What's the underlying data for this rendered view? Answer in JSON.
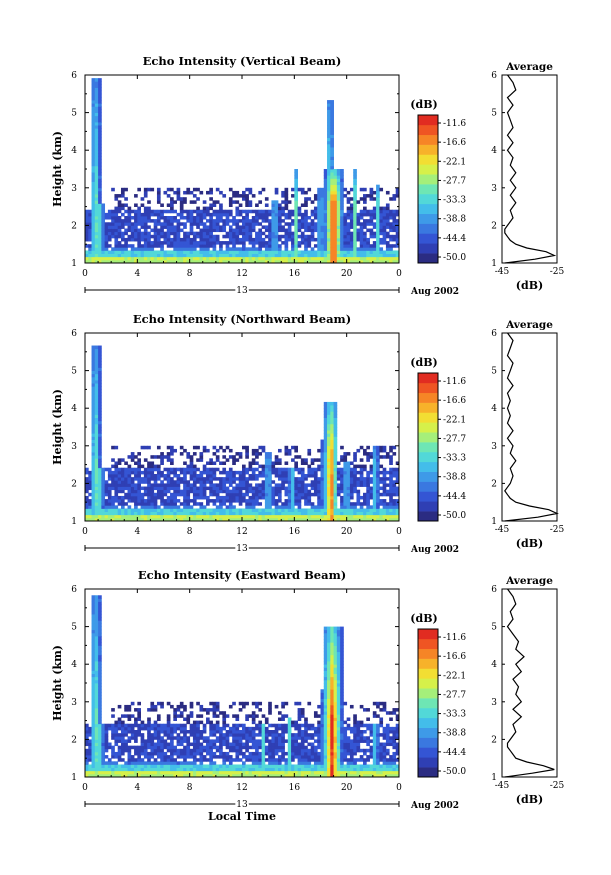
{
  "chart_data": [
    {
      "type": "heatmap",
      "title": "Echo Intensity (Vertical Beam)",
      "ylabel": "Height (km)",
      "xlabel": "",
      "xlim": [
        0,
        24
      ],
      "ylim": [
        1,
        6
      ],
      "xticks": [
        "0",
        "4",
        "8",
        "12",
        "16",
        "20",
        "0"
      ],
      "yticks": [
        "1",
        "2",
        "3",
        "4",
        "5",
        "6"
      ],
      "day_label": "13",
      "date_label": "Aug 2002",
      "colorbar_unit": "(dB)",
      "colorbar_ticks": [
        "-11.6",
        "-16.6",
        "-22.1",
        "-27.7",
        "-33.3",
        "-38.8",
        "-44.4",
        "-50.0"
      ],
      "convection": [
        {
          "t": 0.8,
          "top": 5.9,
          "peak": -30,
          "w": 0.35
        },
        {
          "t": 1.2,
          "top": 2.6,
          "peak": -28,
          "w": 0.2
        },
        {
          "t": 14.5,
          "top": 2.7,
          "peak": -33,
          "w": 0.2
        },
        {
          "t": 16.1,
          "top": 3.5,
          "peak": -31,
          "w": 0.2
        },
        {
          "t": 18.0,
          "top": 3.0,
          "peak": -33,
          "w": 0.2
        },
        {
          "t": 18.7,
          "top": 5.3,
          "peak": -31,
          "w": 0.3
        },
        {
          "t": 19.0,
          "top": 3.5,
          "peak": -12,
          "w": 0.7
        },
        {
          "t": 20.6,
          "top": 3.5,
          "peak": -30,
          "w": 0.2
        },
        {
          "t": 22.4,
          "top": 3.1,
          "peak": -33,
          "w": 0.2
        }
      ],
      "average": {
        "title": "Average",
        "xlabel": "(dB)",
        "xlim": [
          -45,
          -25
        ],
        "xticks": [
          "-45",
          "-25"
        ],
        "ylim": [
          1,
          6
        ],
        "yticks": [
          "1",
          "2",
          "3",
          "4",
          "5",
          "6"
        ],
        "heights": [
          1.0,
          1.1,
          1.2,
          1.3,
          1.4,
          1.5,
          1.6,
          1.7,
          1.8,
          1.9,
          2.0,
          2.2,
          2.4,
          2.6,
          2.8,
          3.0,
          3.2,
          3.4,
          3.6,
          3.8,
          4.0,
          4.2,
          4.4,
          4.6,
          4.8,
          5.0,
          5.2,
          5.4,
          5.6,
          5.8,
          6.0
        ],
        "values": [
          -44,
          -33,
          -26,
          -29,
          -36,
          -40,
          -42,
          -43,
          -44,
          -44,
          -43,
          -41,
          -42,
          -40,
          -42,
          -40,
          -42,
          -40,
          -42,
          -41,
          -43,
          -41,
          -43,
          -41,
          -42,
          -43,
          -41,
          -43,
          -40,
          -41,
          -43
        ]
      }
    },
    {
      "type": "heatmap",
      "title": "Echo Intensity (Northward Beam)",
      "ylabel": "Height (km)",
      "xlabel": "",
      "xlim": [
        0,
        24
      ],
      "ylim": [
        1,
        6
      ],
      "xticks": [
        "0",
        "4",
        "8",
        "12",
        "16",
        "20",
        "0"
      ],
      "yticks": [
        "1",
        "2",
        "3",
        "4",
        "5",
        "6"
      ],
      "day_label": "13",
      "date_label": "Aug 2002",
      "colorbar_unit": "(dB)",
      "colorbar_ticks": [
        "-11.6",
        "-16.6",
        "-22.1",
        "-27.7",
        "-33.3",
        "-38.8",
        "-44.4",
        "-50.0"
      ],
      "convection": [
        {
          "t": 0.8,
          "top": 5.7,
          "peak": -30,
          "w": 0.35
        },
        {
          "t": 1.2,
          "top": 2.4,
          "peak": -28,
          "w": 0.2
        },
        {
          "t": 14.0,
          "top": 2.8,
          "peak": -33,
          "w": 0.2
        },
        {
          "t": 15.8,
          "top": 2.4,
          "peak": -33,
          "w": 0.2
        },
        {
          "t": 18.3,
          "top": 3.2,
          "peak": -32,
          "w": 0.2
        },
        {
          "t": 18.8,
          "top": 4.2,
          "peak": -15,
          "w": 0.55
        },
        {
          "t": 20.0,
          "top": 2.6,
          "peak": -33,
          "w": 0.2
        },
        {
          "t": 22.2,
          "top": 3.0,
          "peak": -33,
          "w": 0.2
        }
      ],
      "average": {
        "title": "Average",
        "xlabel": "(dB)",
        "xlim": [
          -45,
          -25
        ],
        "xticks": [
          "-45",
          "-25"
        ],
        "ylim": [
          1,
          6
        ],
        "yticks": [
          "1",
          "2",
          "3",
          "4",
          "5",
          "6"
        ],
        "heights": [
          1.0,
          1.1,
          1.2,
          1.3,
          1.4,
          1.5,
          1.6,
          1.7,
          1.8,
          1.9,
          2.0,
          2.2,
          2.4,
          2.6,
          2.8,
          3.0,
          3.2,
          3.4,
          3.6,
          3.8,
          4.0,
          4.2,
          4.4,
          4.6,
          4.8,
          5.0,
          5.2,
          5.4,
          5.6,
          5.8,
          6.0
        ],
        "values": [
          -44,
          -32,
          -25,
          -28,
          -35,
          -40,
          -42,
          -43,
          -44,
          -43,
          -42,
          -41,
          -42,
          -40,
          -42,
          -41,
          -43,
          -41,
          -43,
          -42,
          -43,
          -42,
          -43,
          -41,
          -43,
          -42,
          -41,
          -43,
          -42,
          -41,
          -43
        ]
      }
    },
    {
      "type": "heatmap",
      "title": "Echo Intensity (Eastward Beam)",
      "ylabel": "Height (km)",
      "xlabel": "Local Time",
      "xlim": [
        0,
        24
      ],
      "ylim": [
        1,
        6
      ],
      "xticks": [
        "0",
        "4",
        "8",
        "12",
        "16",
        "20",
        "0"
      ],
      "yticks": [
        "1",
        "2",
        "3",
        "4",
        "5",
        "6"
      ],
      "day_label": "13",
      "date_label": "Aug 2002",
      "colorbar_unit": "(dB)",
      "colorbar_ticks": [
        "-11.6",
        "-16.6",
        "-22.1",
        "-27.7",
        "-33.3",
        "-38.8",
        "-44.4",
        "-50.0"
      ],
      "convection": [
        {
          "t": 0.8,
          "top": 5.8,
          "peak": -30,
          "w": 0.4
        },
        {
          "t": 1.2,
          "top": 2.4,
          "peak": -28,
          "w": 0.2
        },
        {
          "t": 13.6,
          "top": 2.4,
          "peak": -33,
          "w": 0.2
        },
        {
          "t": 15.6,
          "top": 2.6,
          "peak": -33,
          "w": 0.2
        },
        {
          "t": 18.3,
          "top": 3.3,
          "peak": -30,
          "w": 0.2
        },
        {
          "t": 18.9,
          "top": 5.0,
          "peak": -12,
          "w": 0.75
        },
        {
          "t": 22.2,
          "top": 2.4,
          "peak": -33,
          "w": 0.2
        }
      ],
      "average": {
        "title": "Average",
        "xlabel": "(dB)",
        "xlim": [
          -45,
          -25
        ],
        "xticks": [
          "-45",
          "-25"
        ],
        "ylim": [
          1,
          6
        ],
        "yticks": [
          "1",
          "2",
          "3",
          "4",
          "5",
          "6"
        ],
        "heights": [
          1.0,
          1.1,
          1.2,
          1.3,
          1.4,
          1.5,
          1.6,
          1.7,
          1.8,
          1.9,
          2.0,
          2.2,
          2.4,
          2.6,
          2.8,
          3.0,
          3.2,
          3.4,
          3.6,
          3.8,
          4.0,
          4.2,
          4.4,
          4.6,
          4.8,
          5.0,
          5.2,
          5.4,
          5.6,
          5.8,
          6.0
        ],
        "values": [
          -44,
          -34,
          -26,
          -30,
          -36,
          -40,
          -41,
          -42,
          -43,
          -43,
          -42,
          -40,
          -41,
          -38,
          -41,
          -38,
          -40,
          -39,
          -41,
          -38,
          -40,
          -37,
          -40,
          -39,
          -41,
          -43,
          -41,
          -42,
          -40,
          -41,
          -43
        ]
      }
    }
  ]
}
